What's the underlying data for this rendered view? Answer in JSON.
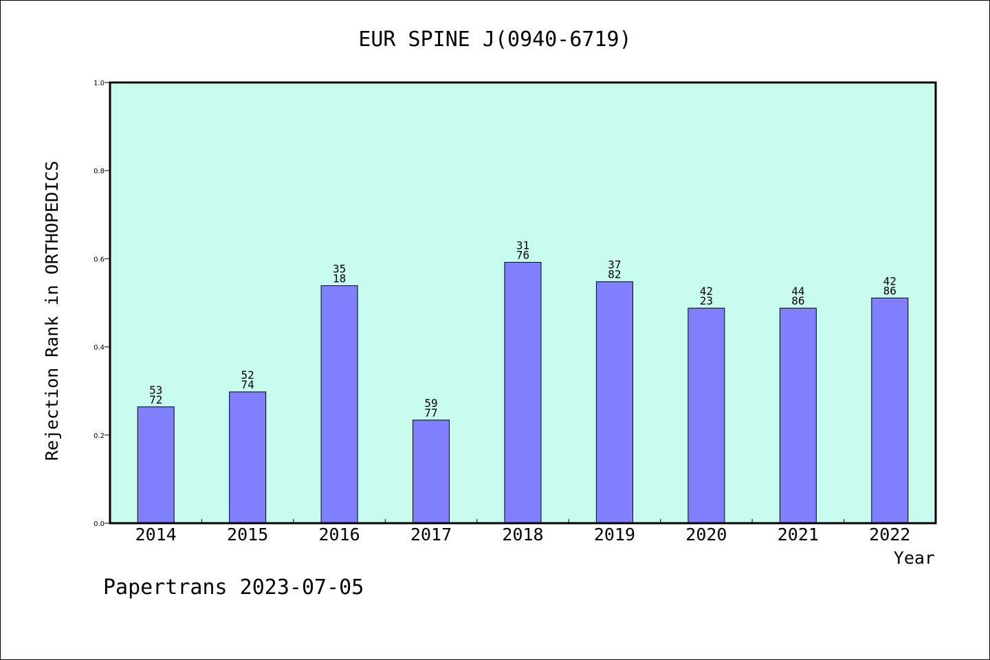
{
  "chart_data": {
    "type": "bar",
    "title": "EUR SPINE J(0940-6719)",
    "xlabel": "Year",
    "ylabel": "Rejection Rank in ORTHOPEDICS",
    "footer": "Papertrans 2023-07-05",
    "categories": [
      "2014",
      "2015",
      "2016",
      "2017",
      "2018",
      "2019",
      "2020",
      "2021",
      "2022"
    ],
    "values": [
      0.264,
      0.298,
      0.539,
      0.234,
      0.592,
      0.548,
      0.488,
      0.488,
      0.511
    ],
    "label_top": [
      "53",
      "52",
      "35",
      "59",
      "31",
      "37",
      "42",
      "44",
      "42"
    ],
    "label_bottom": [
      "72",
      "74",
      "18",
      "77",
      "76",
      "82",
      "23",
      "86",
      "86"
    ],
    "yticks": [
      "0.0",
      "0.2",
      "0.4",
      "0.6",
      "0.8",
      "1.0"
    ],
    "ylim": [
      0,
      1
    ],
    "grid": false,
    "colors": {
      "plot_background": "#c8fcee",
      "bar_fill": "#8080ff",
      "bar_stroke": "#000000"
    }
  }
}
